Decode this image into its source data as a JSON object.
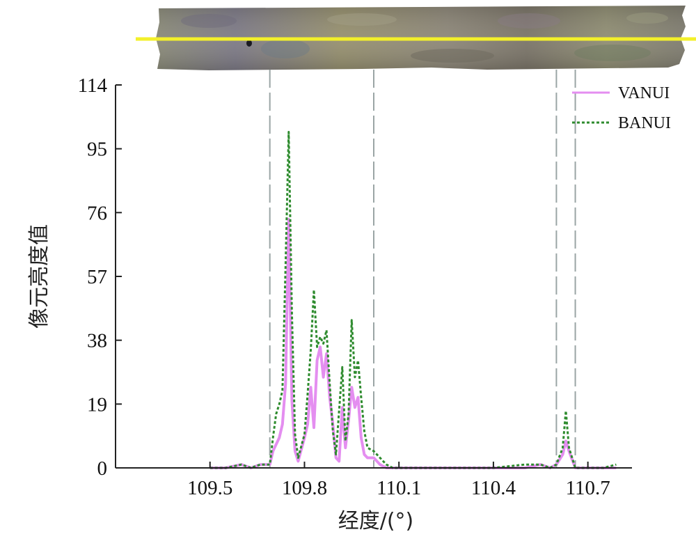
{
  "chart_data": {
    "type": "line",
    "xlabel": "经度/(°)",
    "ylabel": "像元亮度值",
    "xlim": [
      109.2,
      110.84
    ],
    "ylim": [
      0,
      114
    ],
    "xticks": [
      "109.5",
      "109.8",
      "110.1",
      "110.4",
      "110.7"
    ],
    "xtick_values": [
      109.5,
      109.8,
      110.1,
      110.4,
      110.7
    ],
    "yticks": [
      "0",
      "19",
      "38",
      "57",
      "76",
      "95",
      "114"
    ],
    "ytick_values": [
      0,
      19,
      38,
      57,
      76,
      95,
      114
    ],
    "grid": false,
    "legend_position": "top-right",
    "reference_lines_x": [
      109.69,
      110.02,
      110.6,
      110.66
    ],
    "series": [
      {
        "name": "VANUI",
        "color": "#e48ef0",
        "style": "solid",
        "x": [
          109.5,
          109.55,
          109.6,
          109.63,
          109.66,
          109.69,
          109.7,
          109.72,
          109.73,
          109.74,
          109.75,
          109.76,
          109.77,
          109.78,
          109.8,
          109.81,
          109.82,
          109.83,
          109.84,
          109.85,
          109.86,
          109.87,
          109.88,
          109.89,
          109.9,
          109.91,
          109.92,
          109.93,
          109.94,
          109.95,
          109.96,
          109.97,
          109.98,
          109.99,
          110.0,
          110.02,
          110.04,
          110.06,
          110.08,
          110.1,
          110.2,
          110.3,
          110.4,
          110.5,
          110.55,
          110.58,
          110.6,
          110.62,
          110.63,
          110.64,
          110.66,
          110.7,
          110.75,
          110.79
        ],
        "values": [
          0,
          0,
          1,
          0,
          1,
          1,
          5,
          9,
          13,
          25,
          74,
          20,
          5,
          2,
          9,
          13,
          24,
          12,
          32,
          36,
          27,
          34,
          21,
          13,
          3,
          2,
          18,
          6,
          14,
          24,
          18,
          21,
          9,
          4,
          3,
          3,
          1,
          0,
          0,
          0,
          0,
          0,
          0,
          0,
          1,
          0,
          1,
          4,
          8,
          5,
          0,
          0,
          0,
          0
        ]
      },
      {
        "name": "BANUI",
        "color": "#2e8b2e",
        "style": "dotted",
        "x": [
          109.5,
          109.55,
          109.6,
          109.63,
          109.66,
          109.69,
          109.7,
          109.71,
          109.72,
          109.73,
          109.74,
          109.75,
          109.76,
          109.77,
          109.78,
          109.8,
          109.81,
          109.82,
          109.83,
          109.84,
          109.85,
          109.86,
          109.87,
          109.88,
          109.89,
          109.9,
          109.91,
          109.92,
          109.93,
          109.94,
          109.95,
          109.96,
          109.97,
          109.98,
          109.99,
          110.0,
          110.02,
          110.04,
          110.06,
          110.08,
          110.1,
          110.2,
          110.3,
          110.4,
          110.5,
          110.55,
          110.58,
          110.6,
          110.62,
          110.63,
          110.64,
          110.66,
          110.7,
          110.75,
          110.79
        ],
        "values": [
          0,
          0,
          1,
          0,
          1,
          1,
          9,
          16,
          19,
          23,
          60,
          100,
          46,
          10,
          3,
          10,
          22,
          35,
          53,
          36,
          39,
          37,
          41,
          25,
          11,
          4,
          17,
          30,
          8,
          16,
          44,
          27,
          32,
          21,
          11,
          6,
          5,
          3,
          1,
          0,
          0,
          0,
          0,
          0,
          1,
          1,
          0,
          1,
          6,
          17,
          6,
          0,
          0,
          0,
          1
        ]
      }
    ]
  }
}
